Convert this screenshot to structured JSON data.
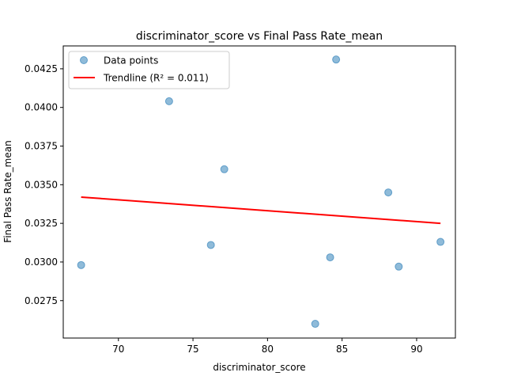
{
  "chart_data": {
    "type": "scatter",
    "title": "discriminator_score vs Final Pass Rate_mean",
    "xlabel": "discriminator_score",
    "ylabel": "Final Pass Rate_mean",
    "xlim": [
      66.3,
      92.6
    ],
    "ylim": [
      0.02508,
      0.04398
    ],
    "xticks": [
      70,
      75,
      80,
      85,
      90
    ],
    "xtick_labels": [
      "70",
      "75",
      "80",
      "85",
      "90"
    ],
    "yticks": [
      0.0275,
      0.03,
      0.0325,
      0.035,
      0.0375,
      0.04,
      0.0425
    ],
    "ytick_labels": [
      "0.0275",
      "0.0300",
      "0.0325",
      "0.0350",
      "0.0375",
      "0.0400",
      "0.0425"
    ],
    "grid": false,
    "legend": {
      "placement": "top-left",
      "entries": [
        "Data points",
        "Trendline (R² = 0.011)"
      ]
    },
    "colors": {
      "points": "#1f77b4",
      "trendline": "#ff0000"
    },
    "series": [
      {
        "name": "Data points",
        "kind": "scatter",
        "x": [
          67.5,
          73.4,
          76.2,
          77.1,
          83.2,
          84.2,
          84.6,
          88.1,
          88.8,
          91.6
        ],
        "y": [
          0.0298,
          0.0404,
          0.0311,
          0.036,
          0.026,
          0.0303,
          0.0431,
          0.0345,
          0.0297,
          0.0313
        ]
      },
      {
        "name": "Trendline (R² = 0.011)",
        "kind": "line",
        "x": [
          67.5,
          91.6
        ],
        "y": [
          0.0342,
          0.0325
        ]
      }
    ]
  }
}
